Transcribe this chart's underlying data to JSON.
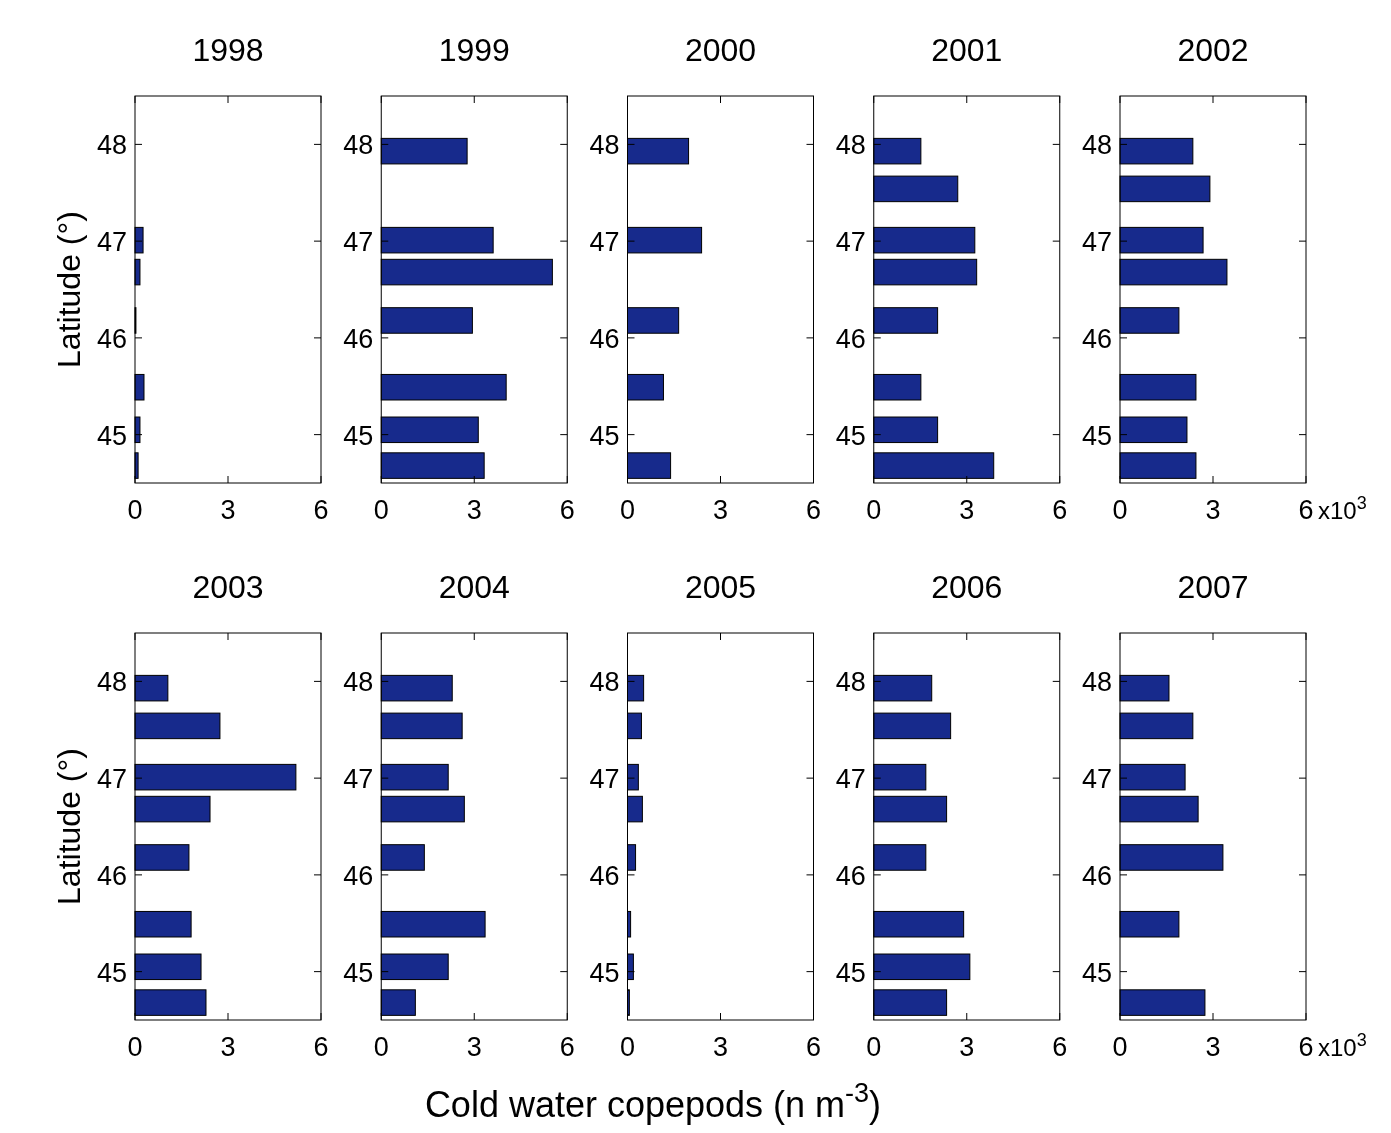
{
  "chart_data": [
    {
      "type": "bar",
      "orientation": "horizontal",
      "title": "1998",
      "ylabel": "Latitude (°)",
      "x": [
        47.01,
        46.68,
        46.18,
        45.49,
        45.05,
        44.68
      ],
      "values": [
        0.26,
        0.16,
        0.03,
        0.29,
        0.16,
        0.1
      ],
      "color": "#172a8c",
      "xlim": [
        0,
        6
      ],
      "xticks": [
        0,
        3,
        6
      ],
      "ylim": [
        44.5,
        48.5
      ],
      "yticks": [
        45,
        46,
        47,
        48
      ]
    },
    {
      "type": "bar",
      "orientation": "horizontal",
      "title": "1999",
      "x": [
        47.93,
        47.01,
        46.68,
        46.18,
        45.49,
        45.05,
        44.68
      ],
      "values": [
        2.77,
        3.61,
        5.52,
        2.94,
        4.03,
        3.13,
        3.32
      ],
      "color": "#172a8c",
      "xlim": [
        0,
        6
      ],
      "xticks": [
        0,
        3,
        6
      ],
      "ylim": [
        44.5,
        48.5
      ],
      "yticks": [
        45,
        46,
        47,
        48
      ]
    },
    {
      "type": "bar",
      "orientation": "horizontal",
      "title": "2000",
      "x": [
        47.93,
        47.01,
        46.18,
        45.49,
        44.68
      ],
      "values": [
        1.97,
        2.39,
        1.65,
        1.16,
        1.39
      ],
      "color": "#172a8c",
      "xlim": [
        0,
        6
      ],
      "xticks": [
        0,
        3,
        6
      ],
      "ylim": [
        44.5,
        48.5
      ],
      "yticks": [
        45,
        46,
        47,
        48
      ]
    },
    {
      "type": "bar",
      "orientation": "horizontal",
      "title": "2001",
      "x": [
        47.93,
        47.54,
        47.01,
        46.68,
        46.18,
        45.49,
        45.05,
        44.68
      ],
      "values": [
        1.52,
        2.71,
        3.26,
        3.32,
        2.06,
        1.52,
        2.06,
        3.87
      ],
      "color": "#172a8c",
      "xlim": [
        0,
        6
      ],
      "xticks": [
        0,
        3,
        6
      ],
      "ylim": [
        44.5,
        48.5
      ],
      "yticks": [
        45,
        46,
        47,
        48
      ]
    },
    {
      "type": "bar",
      "orientation": "horizontal",
      "title": "2002",
      "annotations": [
        "x10$^{3}$"
      ],
      "x": [
        47.93,
        47.54,
        47.01,
        46.68,
        46.18,
        45.49,
        45.05,
        44.68
      ],
      "values": [
        2.35,
        2.9,
        2.68,
        3.45,
        1.9,
        2.45,
        2.16,
        2.45
      ],
      "color": "#172a8c",
      "xlim": [
        0,
        6
      ],
      "xticks": [
        0,
        3,
        6
      ],
      "ylim": [
        44.5,
        48.5
      ],
      "yticks": [
        45,
        46,
        47,
        48
      ]
    },
    {
      "type": "bar",
      "orientation": "horizontal",
      "title": "2003",
      "ylabel": "Latitude (°)",
      "x": [
        47.93,
        47.54,
        47.01,
        46.68,
        46.18,
        45.49,
        45.05,
        44.68
      ],
      "values": [
        1.06,
        2.74,
        5.19,
        2.42,
        1.74,
        1.81,
        2.13,
        2.29
      ],
      "color": "#172a8c",
      "xlim": [
        0,
        6
      ],
      "xticks": [
        0,
        3,
        6
      ],
      "ylim": [
        44.5,
        48.5
      ],
      "yticks": [
        45,
        46,
        47,
        48
      ]
    },
    {
      "type": "bar",
      "orientation": "horizontal",
      "title": "2004",
      "x": [
        47.93,
        47.54,
        47.01,
        46.68,
        46.18,
        45.49,
        45.05,
        44.68
      ],
      "values": [
        2.29,
        2.61,
        2.16,
        2.68,
        1.39,
        3.35,
        2.16,
        1.1
      ],
      "color": "#172a8c",
      "xlim": [
        0,
        6
      ],
      "xticks": [
        0,
        3,
        6
      ],
      "ylim": [
        44.5,
        48.5
      ],
      "yticks": [
        45,
        46,
        47,
        48
      ]
    },
    {
      "type": "bar",
      "orientation": "horizontal",
      "title": "2005",
      "xlabel": "Cold water copepods  (n m$^{-3}$)",
      "x": [
        47.93,
        47.54,
        47.01,
        46.68,
        46.18,
        45.49,
        45.05,
        44.68
      ],
      "values": [
        0.52,
        0.45,
        0.35,
        0.48,
        0.26,
        0.1,
        0.19,
        0.06
      ],
      "color": "#172a8c",
      "xlim": [
        0,
        6
      ],
      "xticks": [
        0,
        3,
        6
      ],
      "ylim": [
        44.5,
        48.5
      ],
      "yticks": [
        45,
        46,
        47,
        48
      ]
    },
    {
      "type": "bar",
      "orientation": "horizontal",
      "title": "2006",
      "x": [
        47.93,
        47.54,
        47.01,
        46.68,
        46.18,
        45.49,
        45.05,
        44.68
      ],
      "values": [
        1.87,
        2.48,
        1.68,
        2.35,
        1.68,
        2.9,
        3.1,
        2.35
      ],
      "color": "#172a8c",
      "xlim": [
        0,
        6
      ],
      "xticks": [
        0,
        3,
        6
      ],
      "ylim": [
        44.5,
        48.5
      ],
      "yticks": [
        45,
        46,
        47,
        48
      ]
    },
    {
      "type": "bar",
      "orientation": "horizontal",
      "title": "2007",
      "annotations": [
        "x10$^{3}$"
      ],
      "x": [
        47.93,
        47.54,
        47.01,
        46.68,
        46.18,
        45.49,
        44.68
      ],
      "values": [
        1.58,
        2.35,
        2.1,
        2.52,
        3.32,
        1.9,
        2.74
      ],
      "color": "#172a8c",
      "xlim": [
        0,
        6
      ],
      "xticks": [
        0,
        3,
        6
      ],
      "ylim": [
        44.5,
        48.5
      ],
      "yticks": [
        45,
        46,
        47,
        48
      ]
    }
  ]
}
